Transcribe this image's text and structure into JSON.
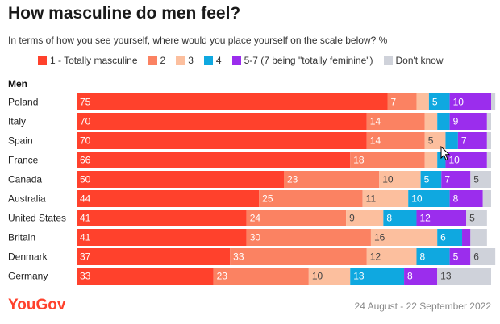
{
  "title": "How masculine do men feel?",
  "subtitle": "In terms of how you see yourself, where would you place yourself on the scale below? %",
  "legend": [
    {
      "label": "1 - Totally masculine",
      "color": "#ff412c"
    },
    {
      "label": "2",
      "color": "#fb8262"
    },
    {
      "label": "3",
      "color": "#fcbf9e"
    },
    {
      "label": "4",
      "color": "#0fa8e0"
    },
    {
      "label": "5-7 (7 being \"totally feminine\")",
      "color": "#9b2ded"
    },
    {
      "label": "Don't know",
      "color": "#cfd2da"
    }
  ],
  "group_label": "Men",
  "footer": {
    "brand": "YouGov",
    "date": "24 August - 22 September 2022"
  },
  "icons": {
    "cursor": "mouse-pointer-icon"
  },
  "chart_data": {
    "type": "bar",
    "orientation": "horizontal",
    "stacked": true,
    "title": "How masculine do men feel?",
    "subtitle": "In terms of how you see yourself, where would you place yourself on the scale below? %",
    "categories": [
      "Poland",
      "Italy",
      "Spain",
      "France",
      "Canada",
      "Australia",
      "United States",
      "Britain",
      "Denmark",
      "Germany"
    ],
    "series": [
      {
        "name": "1 - Totally masculine",
        "color": "#ff412c",
        "values": [
          75,
          70,
          70,
          66,
          50,
          44,
          41,
          41,
          37,
          33
        ]
      },
      {
        "name": "2",
        "color": "#fb8262",
        "values": [
          7,
          14,
          14,
          18,
          23,
          25,
          24,
          30,
          33,
          23
        ]
      },
      {
        "name": "3",
        "color": "#fcbf9e",
        "values": [
          3,
          3,
          5,
          3,
          10,
          11,
          9,
          16,
          12,
          10
        ]
      },
      {
        "name": "4",
        "color": "#0fa8e0",
        "values": [
          5,
          3,
          3,
          2,
          5,
          10,
          8,
          6,
          8,
          13
        ]
      },
      {
        "name": "5-7 (7 being \"totally feminine\")",
        "color": "#9b2ded",
        "values": [
          10,
          9,
          7,
          10,
          7,
          8,
          12,
          2,
          5,
          8
        ]
      },
      {
        "name": "Don't know",
        "color": "#cfd2da",
        "values": [
          1,
          1,
          1,
          1,
          5,
          2,
          5,
          4,
          6,
          13
        ]
      }
    ],
    "labeled_threshold": 5,
    "xlim": [
      0,
      100
    ],
    "grid": false,
    "legend_position": "top"
  }
}
